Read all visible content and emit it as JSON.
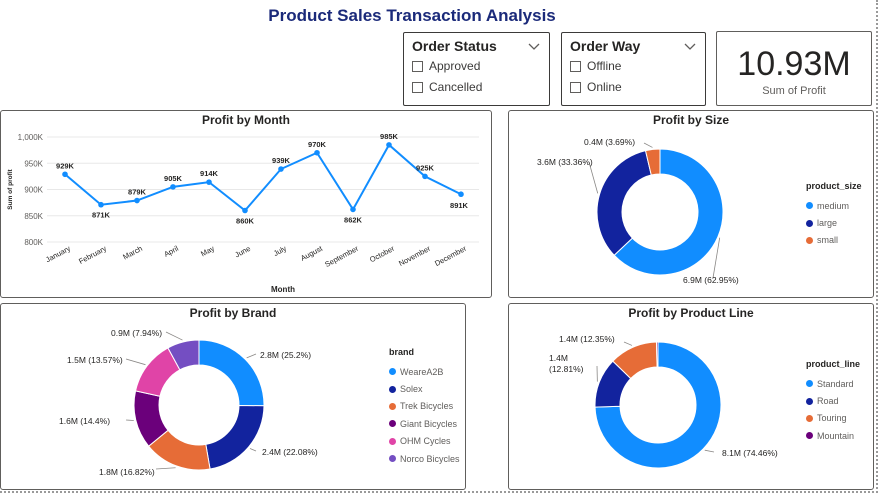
{
  "report": {
    "title": "Product Sales Transaction Analysis"
  },
  "slicers": {
    "order_status": {
      "title": "Order Status",
      "options": [
        "Approved",
        "Cancelled"
      ]
    },
    "order_way": {
      "title": "Order Way",
      "options": [
        "Offline",
        "Online"
      ]
    }
  },
  "card": {
    "value": "10.93M",
    "label": "Sum of Profit"
  },
  "colors": {
    "title": "#1b2a7a",
    "blue": "#118dff",
    "navy": "#12239e",
    "orange": "#e66c37",
    "purple": "#6b007b",
    "pink": "#e044a7",
    "violet": "#744ec2"
  },
  "chart_data": [
    {
      "id": "profit_by_month",
      "type": "line",
      "title": "Profit by Month",
      "xlabel": "Month",
      "ylabel": "Sum of profit",
      "categories": [
        "January",
        "February",
        "March",
        "April",
        "May",
        "June",
        "July",
        "August",
        "September",
        "October",
        "November",
        "December"
      ],
      "values": [
        929,
        871,
        879,
        905,
        914,
        860,
        939,
        970,
        862,
        985,
        925,
        891
      ],
      "value_labels": [
        "929K",
        "871K",
        "879K",
        "905K",
        "914K",
        "860K",
        "939K",
        "970K",
        "862K",
        "985K",
        "925K",
        "891K"
      ],
      "ylim": [
        800,
        1000
      ],
      "yticks": [
        800,
        850,
        900,
        950,
        1000
      ],
      "ytick_labels": [
        "800K",
        "850K",
        "900K",
        "950K",
        "1,000K"
      ],
      "grid": true,
      "color": "#118dff"
    },
    {
      "id": "profit_by_size",
      "type": "pie",
      "title": "Profit by Size",
      "legend_title": "product_size",
      "legend_position": "right",
      "slices": [
        {
          "name": "medium",
          "value": 62.95,
          "label": "6.9M (62.95%)",
          "color": "#118dff"
        },
        {
          "name": "large",
          "value": 33.36,
          "label": "3.6M (33.36%)",
          "color": "#12239e"
        },
        {
          "name": "small",
          "value": 3.69,
          "label": "0.4M (3.69%)",
          "color": "#e66c37"
        }
      ]
    },
    {
      "id": "profit_by_brand",
      "type": "pie",
      "title": "Profit by Brand",
      "legend_title": "brand",
      "legend_position": "right",
      "slices": [
        {
          "name": "WeareA2B",
          "value": 25.2,
          "label": "2.8M (25.2%)",
          "color": "#118dff"
        },
        {
          "name": "Solex",
          "value": 22.08,
          "label": "2.4M (22.08%)",
          "color": "#12239e"
        },
        {
          "name": "Trek Bicycles",
          "value": 16.82,
          "label": "1.8M (16.82%)",
          "color": "#e66c37"
        },
        {
          "name": "Giant Bicycles",
          "value": 14.4,
          "label": "1.6M (14.4%)",
          "color": "#6b007b"
        },
        {
          "name": "OHM Cycles",
          "value": 13.57,
          "label": "1.5M (13.57%)",
          "color": "#e044a7"
        },
        {
          "name": "Norco Bicycles",
          "value": 7.94,
          "label": "0.9M (7.94%)",
          "color": "#744ec2"
        }
      ]
    },
    {
      "id": "profit_by_product_line",
      "type": "pie",
      "title": "Profit by Product Line",
      "legend_title": "product_line",
      "legend_position": "right",
      "slices": [
        {
          "name": "Standard",
          "value": 74.46,
          "label": "8.1M (74.46%)",
          "color": "#118dff"
        },
        {
          "name": "Road",
          "value": 12.81,
          "label": "1.4M (12.81%)",
          "color": "#12239e"
        },
        {
          "name": "Touring",
          "value": 12.35,
          "label": "1.4M (12.35%)",
          "color": "#e66c37"
        },
        {
          "name": "Mountain",
          "value": 0.38,
          "label": "",
          "color": "#6b007b"
        }
      ]
    }
  ]
}
